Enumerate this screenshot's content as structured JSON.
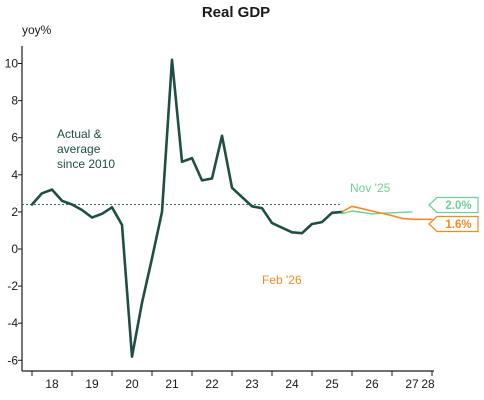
{
  "chart_data": {
    "type": "line",
    "title": "Real GDP",
    "ylabel": "yoy%",
    "xlabel": "",
    "ylim": [
      -6.5,
      11
    ],
    "xlim": [
      2017.75,
      2028.05
    ],
    "y_ticks": [
      -6,
      -4,
      -2,
      0,
      2,
      4,
      6,
      8,
      10
    ],
    "x_ticks": [
      {
        "label": "18",
        "x": 2018.5
      },
      {
        "label": "19",
        "x": 2019.5
      },
      {
        "label": "20",
        "x": 2020.5
      },
      {
        "label": "21",
        "x": 2021.5
      },
      {
        "label": "22",
        "x": 2022.5
      },
      {
        "label": "23",
        "x": 2023.5
      },
      {
        "label": "24",
        "x": 2024.5
      },
      {
        "label": "25",
        "x": 2025.5
      },
      {
        "label": "26",
        "x": 2026.5
      },
      {
        "label": "27",
        "x": 2027.5
      },
      {
        "label": "28",
        "x": 2028.5
      }
    ],
    "grid": false,
    "average_line": {
      "value": 2.4,
      "label": "Actual & average since 2010",
      "color": "#3f6b61"
    },
    "series": [
      {
        "name": "Actual",
        "color": "#1f4e45",
        "points": [
          [
            2018.0,
            2.4
          ],
          [
            2018.25,
            3.0
          ],
          [
            2018.5,
            3.2
          ],
          [
            2018.75,
            2.6
          ],
          [
            2019.0,
            2.4
          ],
          [
            2019.25,
            2.1
          ],
          [
            2019.5,
            1.7
          ],
          [
            2019.75,
            1.9
          ],
          [
            2020.0,
            2.25
          ],
          [
            2020.25,
            1.3
          ],
          [
            2020.5,
            -5.8
          ],
          [
            2020.75,
            -2.9
          ],
          [
            2021.0,
            -0.5
          ],
          [
            2021.25,
            2.0
          ],
          [
            2021.5,
            10.2
          ],
          [
            2021.75,
            4.7
          ],
          [
            2022.0,
            4.9
          ],
          [
            2022.25,
            3.7
          ],
          [
            2022.5,
            3.8
          ],
          [
            2022.75,
            6.1
          ],
          [
            2023.0,
            3.3
          ],
          [
            2023.25,
            2.8
          ],
          [
            2023.5,
            2.3
          ],
          [
            2023.75,
            2.2
          ],
          [
            2024.0,
            1.4
          ],
          [
            2024.25,
            1.15
          ],
          [
            2024.5,
            0.9
          ],
          [
            2024.75,
            0.85
          ],
          [
            2025.0,
            1.35
          ],
          [
            2025.25,
            1.45
          ],
          [
            2025.5,
            1.95
          ],
          [
            2025.75,
            2.0
          ]
        ]
      },
      {
        "name": "Nov '25",
        "color": "#6fcf97",
        "points": [
          [
            2025.75,
            1.9
          ],
          [
            2026.0,
            2.05
          ],
          [
            2026.5,
            1.9
          ],
          [
            2027.0,
            1.95
          ],
          [
            2027.5,
            2.0
          ]
        ]
      },
      {
        "name": "Feb '26",
        "color": "#f08a24",
        "points": [
          [
            2025.75,
            2.0
          ],
          [
            2026.0,
            2.3
          ],
          [
            2026.5,
            2.05
          ],
          [
            2027.0,
            1.8
          ],
          [
            2027.25,
            1.65
          ],
          [
            2027.5,
            1.6
          ],
          [
            2028.0,
            1.6
          ]
        ]
      }
    ],
    "end_labels": [
      {
        "text": "2.0%",
        "value": 2.0,
        "color": "#6fcf97"
      },
      {
        "text": "1.6%",
        "value": 1.6,
        "color": "#f08a24"
      }
    ]
  }
}
